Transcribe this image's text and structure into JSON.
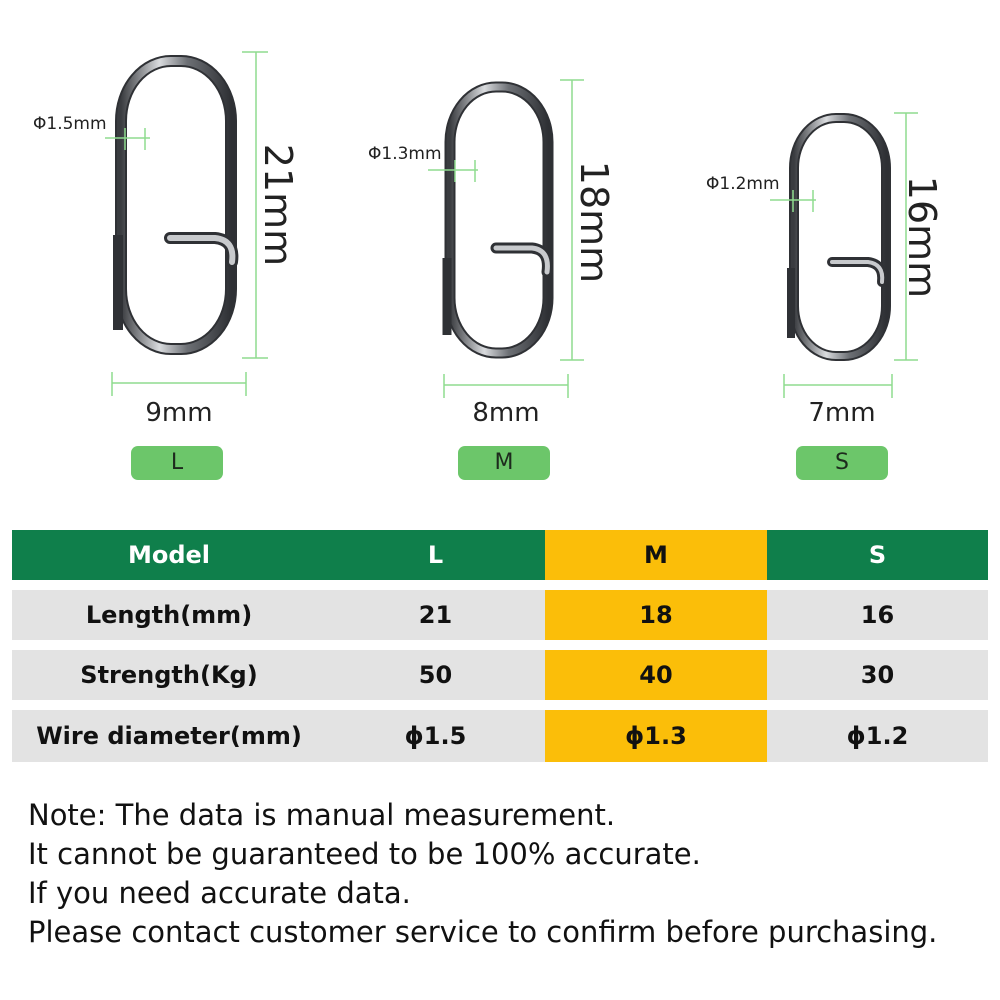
{
  "sizes": [
    {
      "label": "L",
      "length": "21mm",
      "width": "9mm",
      "wire": "Φ1.5mm"
    },
    {
      "label": "M",
      "length": "18mm",
      "width": "8mm",
      "wire": "Φ1.3mm"
    },
    {
      "label": "S",
      "length": "16mm",
      "width": "7mm",
      "wire": "Φ1.2mm"
    }
  ],
  "table": {
    "headers": [
      "Model",
      "L",
      "M",
      "S"
    ],
    "rows": [
      {
        "label": "Length(mm)",
        "values": [
          "21",
          "18",
          "16"
        ]
      },
      {
        "label": "Strength(Kg)",
        "values": [
          "50",
          "40",
          "30"
        ]
      },
      {
        "label": "Wire diameter(mm)",
        "values": [
          "ϕ1.5",
          "ϕ1.3",
          "ϕ1.2"
        ]
      }
    ]
  },
  "note": [
    "Note: The data is manual measurement.",
    "It cannot be guaranteed to be 100% accurate.",
    "If you need accurate data.",
    "Please contact customer service to confirm before purchasing."
  ],
  "colors": {
    "header_green": "#0f7f4b",
    "highlight": "#fbbe09",
    "row_gray": "#e3e3e3",
    "pill_green": "#6cc66a",
    "dimension_line": "#8fdc8f",
    "metal": "#6e7176"
  }
}
